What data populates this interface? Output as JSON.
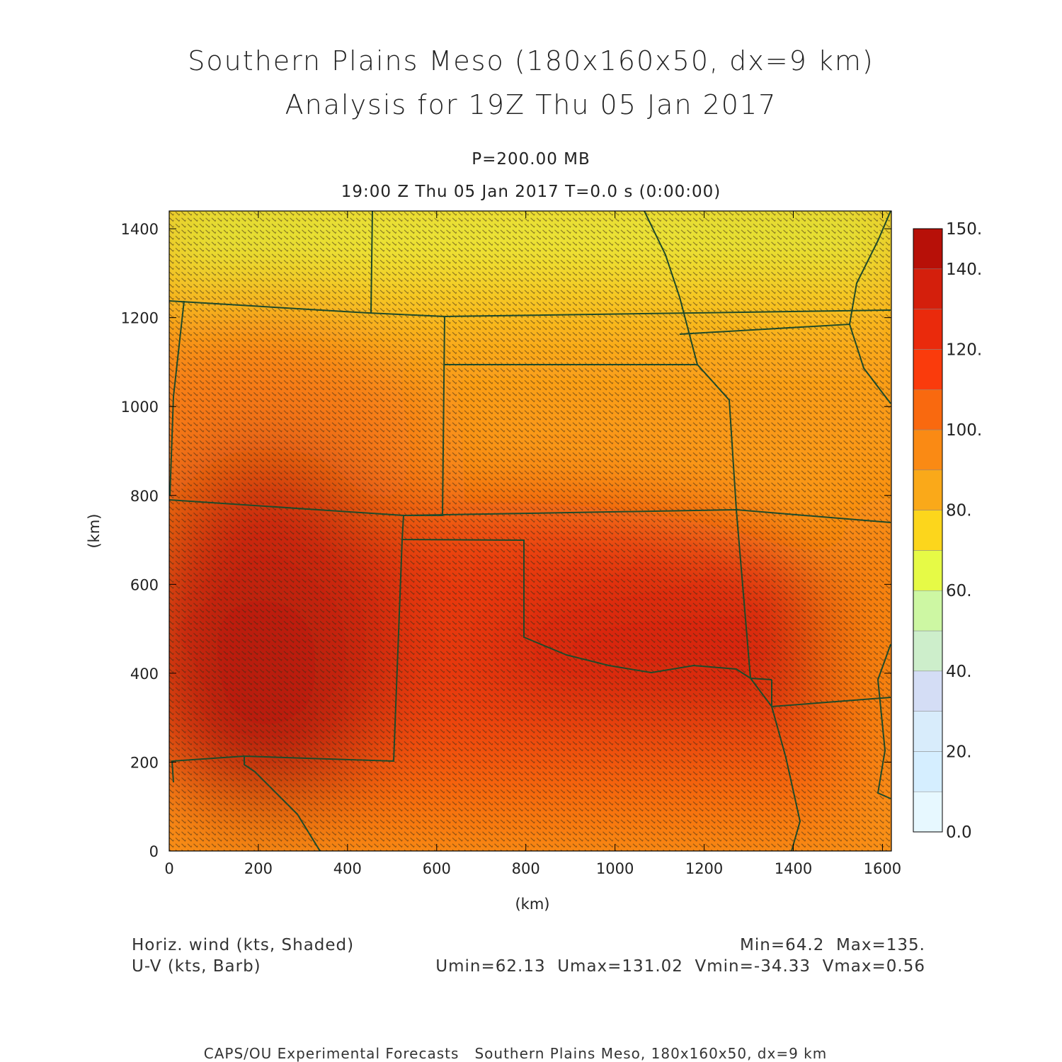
{
  "title_line1": "Southern Plains Meso (180x160x50, dx=9 km)",
  "title_line2": "Analysis for 19Z Thu 05 Jan 2017",
  "level": "P=200.00 MB",
  "time_line": "19:00 Z Thu 05 Jan 2017    T=0.0 s (0:00:00)",
  "axes": {
    "x_label": "(km)",
    "y_label": "(km)",
    "x_ticks": [
      "0",
      "200",
      "400",
      "600",
      "800",
      "1000",
      "1200",
      "1400",
      "1600"
    ],
    "y_ticks": [
      "0",
      "200",
      "400",
      "600",
      "800",
      "1000",
      "1200",
      "1400"
    ]
  },
  "colorbar": {
    "labels": [
      "150.",
      "140.",
      "120.",
      "100.",
      "80.",
      "60.",
      "40.",
      "20.",
      "0.0"
    ],
    "colors": [
      "#e7f8ff",
      "#d5eeff",
      "#d8ecfb",
      "#d4ddf5",
      "#cdeecb",
      "#cdf7a3",
      "#e6fa46",
      "#fcd61c",
      "#faa919",
      "#fa8a14",
      "#f9690f",
      "#fa3b0c",
      "#ea2a0c",
      "#d41f0c",
      "#b71008"
    ]
  },
  "field_stats": "Min=64.2  Max=135.",
  "component_stats": "Umin=62.13  Umax=131.02  Vmin=-34.33  Vmax=0.56",
  "legend_shaded": "Horiz. wind (kts, Shaded)",
  "legend_barb": "U-V (kts, Barb)",
  "footer": "CAPS/OU Experimental Forecasts   Southern Plains Meso, 180x160x50, dx=9 km",
  "chart_data": {
    "type": "heatmap",
    "field": "horizontal wind speed (kts)",
    "x_range_km": [
      0,
      1620
    ],
    "y_range_km": [
      0,
      1440
    ],
    "value_range": [
      0,
      150
    ],
    "min": 64.2,
    "max": 135.0,
    "max_center_km": [
      250,
      400
    ]
  }
}
